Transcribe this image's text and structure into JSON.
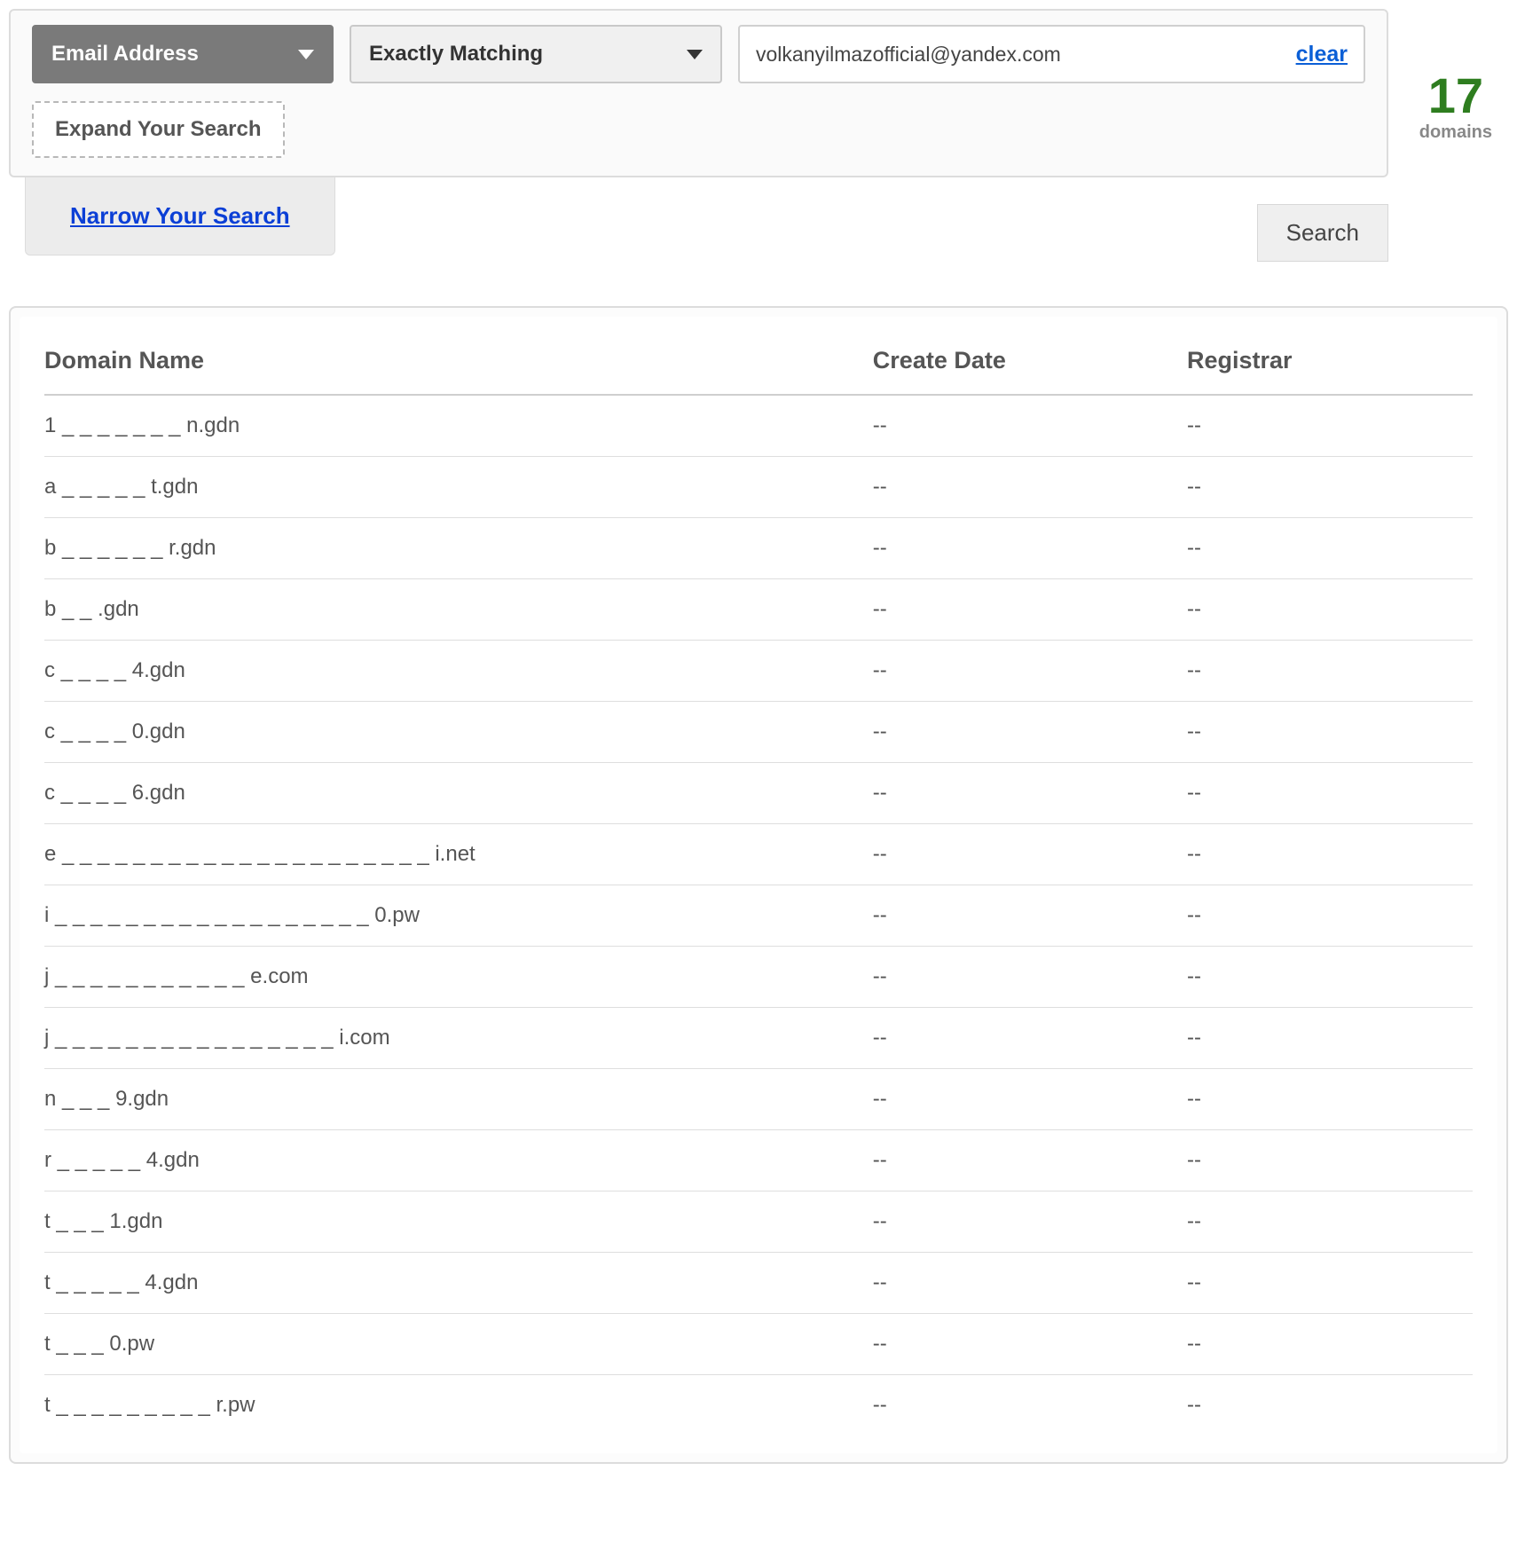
{
  "search": {
    "field_dropdown_label": "Email Address",
    "match_dropdown_label": "Exactly Matching",
    "search_value": "volkanyilmazofficial@yandex.com",
    "clear_label": "clear",
    "expand_label": "Expand Your Search",
    "narrow_label": "Narrow Your Search",
    "search_button_label": "Search"
  },
  "summary": {
    "count": "17",
    "count_label": "domains"
  },
  "table": {
    "columns": [
      "Domain Name",
      "Create Date",
      "Registrar"
    ],
    "rows": [
      {
        "domain": "1 _ _ _ _ _ _ _ n.gdn",
        "create": "--",
        "registrar": "--"
      },
      {
        "domain": "a _ _ _ _ _ t.gdn",
        "create": "--",
        "registrar": "--"
      },
      {
        "domain": "b _ _ _ _ _ _ r.gdn",
        "create": "--",
        "registrar": "--"
      },
      {
        "domain": "b _ _ .gdn",
        "create": "--",
        "registrar": "--"
      },
      {
        "domain": "c _ _ _ _ 4.gdn",
        "create": "--",
        "registrar": "--"
      },
      {
        "domain": "c _ _ _ _ 0.gdn",
        "create": "--",
        "registrar": "--"
      },
      {
        "domain": "c _ _ _ _ 6.gdn",
        "create": "--",
        "registrar": "--"
      },
      {
        "domain": "e _ _ _ _ _ _ _ _ _ _ _ _ _ _ _ _ _ _ _ _ _ i.net",
        "create": "--",
        "registrar": "--"
      },
      {
        "domain": "i _ _ _ _ _ _ _ _ _ _ _ _ _ _ _ _ _ _ 0.pw",
        "create": "--",
        "registrar": "--"
      },
      {
        "domain": "j _ _ _ _ _ _ _ _ _ _ _ e.com",
        "create": "--",
        "registrar": "--"
      },
      {
        "domain": "j _ _ _ _ _ _ _ _ _ _ _ _ _ _ _ _ i.com",
        "create": "--",
        "registrar": "--"
      },
      {
        "domain": "n _ _ _ 9.gdn",
        "create": "--",
        "registrar": "--"
      },
      {
        "domain": "r _ _ _ _ _ 4.gdn",
        "create": "--",
        "registrar": "--"
      },
      {
        "domain": "t _ _ _ 1.gdn",
        "create": "--",
        "registrar": "--"
      },
      {
        "domain": "t _ _ _ _ _ 4.gdn",
        "create": "--",
        "registrar": "--"
      },
      {
        "domain": "t _ _ _ 0.pw",
        "create": "--",
        "registrar": "--"
      },
      {
        "domain": "t _ _ _ _ _ _ _ _ _ r.pw",
        "create": "--",
        "registrar": "--"
      }
    ]
  },
  "colors": {
    "accent_green": "#2e7d1f",
    "link_blue": "#0b3fd6",
    "border_gray": "#dcdcdc",
    "row_border": "#dedede",
    "header_border": "#cfcfcf",
    "dark_dropdown_bg": "#7a7a7a",
    "panel_bg": "#fafafa"
  }
}
